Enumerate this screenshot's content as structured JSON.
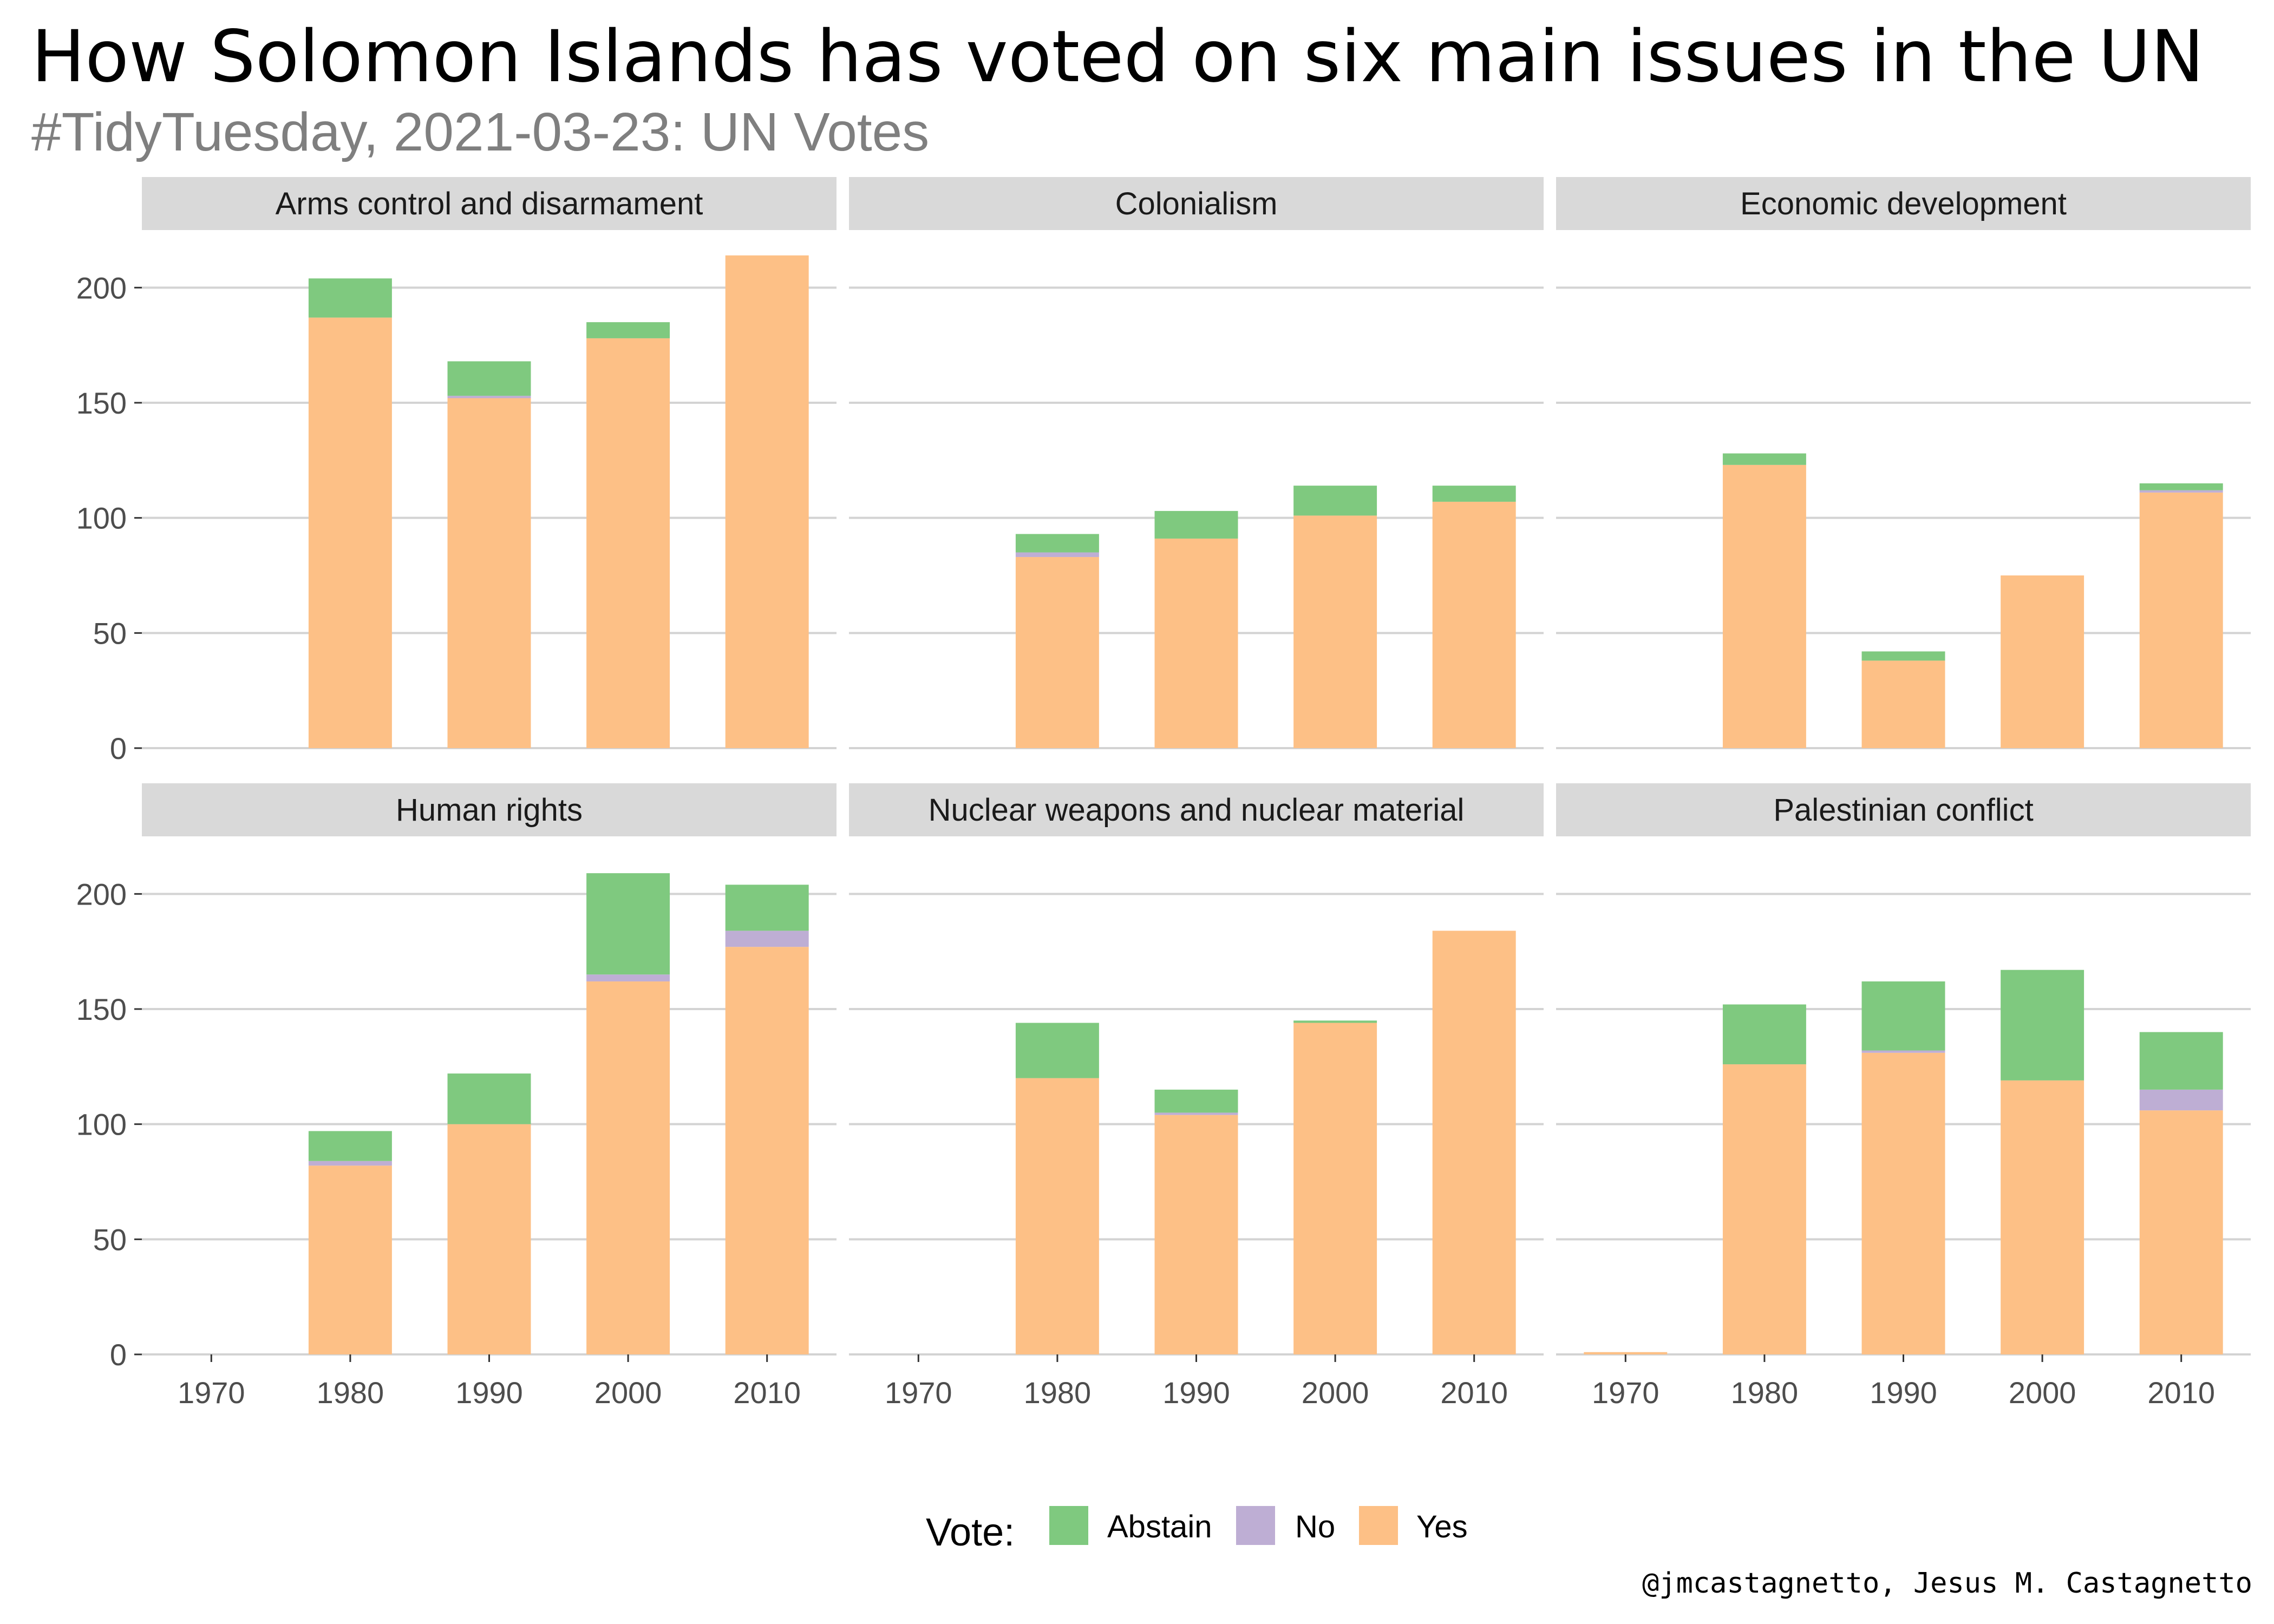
{
  "title": "How Solomon Islands has voted on six main issues in the UN",
  "subtitle": "#TidyTuesday, 2021-03-23: UN Votes",
  "caption": "@jmcastagnetto, Jesus M. Castagnetto",
  "legend": {
    "title": "Vote:",
    "items": [
      {
        "label": "Abstain",
        "color": "#7fc97f"
      },
      {
        "label": "No",
        "color": "#beaed4"
      },
      {
        "label": "Yes",
        "color": "#fdc086"
      }
    ]
  },
  "chart_data": {
    "type": "bar",
    "stacked": true,
    "faceted": true,
    "facet_layout": {
      "rows": 2,
      "cols": 3
    },
    "categories": [
      "1970",
      "1980",
      "1990",
      "2000",
      "2010"
    ],
    "ylim": [
      0,
      225
    ],
    "y_ticks": [
      0,
      50,
      100,
      150,
      200
    ],
    "y_tick_labels": [
      "0",
      "50",
      "100",
      "150",
      "200"
    ],
    "grid": true,
    "legend_position": "bottom",
    "stack_order": [
      "Yes",
      "No",
      "Abstain"
    ],
    "series_colors": {
      "Abstain": "#7fc97f",
      "No": "#beaed4",
      "Yes": "#fdc086"
    },
    "facets": [
      {
        "label": "Arms control and disarmament",
        "series": [
          {
            "name": "Yes",
            "values": [
              0,
              187,
              152,
              178,
              214
            ]
          },
          {
            "name": "No",
            "values": [
              0,
              0,
              1,
              0,
              0
            ]
          },
          {
            "name": "Abstain",
            "values": [
              0,
              17,
              15,
              7,
              0
            ]
          }
        ]
      },
      {
        "label": "Colonialism",
        "series": [
          {
            "name": "Yes",
            "values": [
              0,
              83,
              91,
              101,
              107
            ]
          },
          {
            "name": "No",
            "values": [
              0,
              2,
              0,
              0,
              0
            ]
          },
          {
            "name": "Abstain",
            "values": [
              0,
              8,
              12,
              13,
              7
            ]
          }
        ]
      },
      {
        "label": "Economic development",
        "series": [
          {
            "name": "Yes",
            "values": [
              0,
              123,
              38,
              75,
              111
            ]
          },
          {
            "name": "No",
            "values": [
              0,
              0,
              0,
              0,
              1
            ]
          },
          {
            "name": "Abstain",
            "values": [
              0,
              5,
              4,
              0,
              3
            ]
          }
        ]
      },
      {
        "label": "Human rights",
        "series": [
          {
            "name": "Yes",
            "values": [
              0,
              82,
              100,
              162,
              177
            ]
          },
          {
            "name": "No",
            "values": [
              0,
              2,
              0,
              3,
              7
            ]
          },
          {
            "name": "Abstain",
            "values": [
              0,
              13,
              22,
              44,
              20
            ]
          }
        ]
      },
      {
        "label": "Nuclear weapons and nuclear material",
        "series": [
          {
            "name": "Yes",
            "values": [
              0,
              120,
              104,
              144,
              184
            ]
          },
          {
            "name": "No",
            "values": [
              0,
              0,
              1,
              0,
              0
            ]
          },
          {
            "name": "Abstain",
            "values": [
              0,
              24,
              10,
              1,
              0
            ]
          }
        ]
      },
      {
        "label": "Palestinian conflict",
        "series": [
          {
            "name": "Yes",
            "values": [
              1,
              126,
              131,
              119,
              106
            ]
          },
          {
            "name": "No",
            "values": [
              0,
              0,
              1,
              0,
              9
            ]
          },
          {
            "name": "Abstain",
            "values": [
              0,
              26,
              30,
              48,
              25
            ]
          }
        ]
      }
    ]
  }
}
